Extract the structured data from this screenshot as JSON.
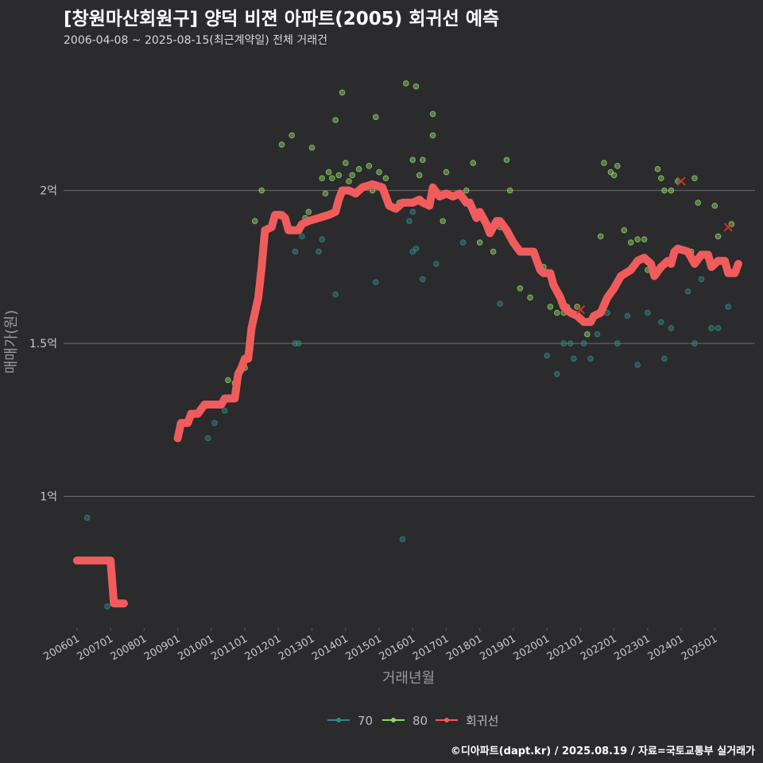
{
  "header": {
    "title": "[창원마산회원구] 양덕 비젼 아파트(2005) 회귀선 예측",
    "subtitle": "2006-04-08 ~ 2025-08-15(최근계약일) 전체 거래건"
  },
  "caption": "©디아파트(dapt.kr) / 2025.08.19 / 자료=국토교통부 실거래가",
  "chart_data": {
    "type": "scatter",
    "xlabel": "거래년월",
    "ylabel": "매매가(원)",
    "x_ticks": [
      "200601",
      "200701",
      "200801",
      "200901",
      "201001",
      "201101",
      "201201",
      "201301",
      "201401",
      "201501",
      "201601",
      "201701",
      "201801",
      "201901",
      "202001",
      "202101",
      "202201",
      "202301",
      "202401",
      "202501"
    ],
    "y_ticks": [
      {
        "value": 1.0,
        "label": "1억"
      },
      {
        "value": 1.5,
        "label": "1.5억"
      },
      {
        "value": 2.0,
        "label": "2억"
      }
    ],
    "xlim": [
      2005.6,
      2026.2
    ],
    "ylim": [
      0.57,
      2.42
    ],
    "grid": true,
    "legend_position": "bottom",
    "colors": {
      "70": "#2e8a86",
      "80": "#8fd468",
      "regression": "#f05c5c",
      "outlier": "#c0392b"
    },
    "series": [
      {
        "name": "70",
        "points": [
          [
            2006.3,
            0.93
          ],
          [
            2006.9,
            0.64
          ],
          [
            2009.9,
            1.19
          ],
          [
            2010.1,
            1.24
          ],
          [
            2010.4,
            1.28
          ],
          [
            2012.5,
            1.5
          ],
          [
            2012.6,
            1.5
          ],
          [
            2012.5,
            1.8
          ],
          [
            2012.7,
            1.85
          ],
          [
            2013.2,
            1.8
          ],
          [
            2013.3,
            1.84
          ],
          [
            2013.7,
            1.66
          ],
          [
            2014.9,
            1.7
          ],
          [
            2015.7,
            0.86
          ],
          [
            2015.9,
            1.9
          ],
          [
            2016.0,
            1.93
          ],
          [
            2016.0,
            1.8
          ],
          [
            2016.1,
            1.81
          ],
          [
            2016.3,
            1.71
          ],
          [
            2016.7,
            1.76
          ],
          [
            2017.5,
            1.83
          ],
          [
            2018.6,
            1.63
          ],
          [
            2020.0,
            1.46
          ],
          [
            2020.3,
            1.4
          ],
          [
            2020.5,
            1.5
          ],
          [
            2020.7,
            1.5
          ],
          [
            2020.8,
            1.45
          ],
          [
            2021.1,
            1.5
          ],
          [
            2021.3,
            1.45
          ],
          [
            2021.5,
            1.53
          ],
          [
            2021.8,
            1.6
          ],
          [
            2022.1,
            1.5
          ],
          [
            2022.4,
            1.59
          ],
          [
            2022.7,
            1.43
          ],
          [
            2023.0,
            1.6
          ],
          [
            2023.4,
            1.57
          ],
          [
            2023.5,
            1.45
          ],
          [
            2023.7,
            1.55
          ],
          [
            2024.2,
            1.67
          ],
          [
            2024.4,
            1.5
          ],
          [
            2024.6,
            1.71
          ],
          [
            2024.9,
            1.55
          ],
          [
            2025.1,
            1.55
          ],
          [
            2025.4,
            1.62
          ]
        ]
      },
      {
        "name": "80",
        "points": [
          [
            2010.5,
            1.38
          ],
          [
            2010.7,
            1.37
          ],
          [
            2011.0,
            1.42
          ],
          [
            2011.3,
            1.9
          ],
          [
            2011.5,
            2.0
          ],
          [
            2012.1,
            2.15
          ],
          [
            2012.4,
            2.18
          ],
          [
            2012.8,
            1.91
          ],
          [
            2012.9,
            1.93
          ],
          [
            2013.0,
            2.14
          ],
          [
            2013.3,
            2.04
          ],
          [
            2013.4,
            1.99
          ],
          [
            2013.5,
            2.06
          ],
          [
            2013.6,
            2.04
          ],
          [
            2013.7,
            2.23
          ],
          [
            2013.8,
            2.05
          ],
          [
            2013.9,
            2.32
          ],
          [
            2014.0,
            2.09
          ],
          [
            2014.1,
            2.03
          ],
          [
            2014.2,
            2.05
          ],
          [
            2014.4,
            2.07
          ],
          [
            2014.7,
            2.08
          ],
          [
            2014.8,
            2.0
          ],
          [
            2014.9,
            2.24
          ],
          [
            2015.0,
            2.06
          ],
          [
            2015.1,
            2.0
          ],
          [
            2015.2,
            2.04
          ],
          [
            2015.6,
            1.96
          ],
          [
            2015.8,
            2.35
          ],
          [
            2016.0,
            2.1
          ],
          [
            2016.1,
            2.34
          ],
          [
            2016.2,
            2.05
          ],
          [
            2016.3,
            2.1
          ],
          [
            2016.6,
            2.25
          ],
          [
            2016.6,
            2.18
          ],
          [
            2016.9,
            1.9
          ],
          [
            2017.0,
            2.06
          ],
          [
            2017.6,
            2.0
          ],
          [
            2017.8,
            2.09
          ],
          [
            2018.0,
            1.83
          ],
          [
            2018.4,
            1.8
          ],
          [
            2018.6,
            1.88
          ],
          [
            2018.8,
            2.1
          ],
          [
            2018.9,
            2.0
          ],
          [
            2019.2,
            1.68
          ],
          [
            2019.5,
            1.65
          ],
          [
            2019.9,
            1.75
          ],
          [
            2020.1,
            1.62
          ],
          [
            2020.3,
            1.6
          ],
          [
            2020.5,
            1.6
          ],
          [
            2020.6,
            1.62
          ],
          [
            2020.9,
            1.62
          ],
          [
            2021.2,
            1.53
          ],
          [
            2021.6,
            1.85
          ],
          [
            2021.7,
            2.09
          ],
          [
            2021.9,
            2.06
          ],
          [
            2022.0,
            2.05
          ],
          [
            2022.1,
            2.08
          ],
          [
            2022.3,
            1.87
          ],
          [
            2022.5,
            1.83
          ],
          [
            2022.7,
            1.84
          ],
          [
            2022.9,
            1.84
          ],
          [
            2023.0,
            1.74
          ],
          [
            2023.3,
            2.07
          ],
          [
            2023.4,
            2.04
          ],
          [
            2023.5,
            2.0
          ],
          [
            2023.7,
            2.0
          ],
          [
            2023.9,
            2.03
          ],
          [
            2024.3,
            1.8
          ],
          [
            2024.4,
            2.04
          ],
          [
            2024.5,
            1.96
          ],
          [
            2025.0,
            1.95
          ],
          [
            2025.1,
            1.85
          ],
          [
            2025.5,
            1.89
          ]
        ]
      }
    ],
    "regression_name": "회귀선",
    "regression": [
      [
        2006.0,
        0.79
      ],
      [
        2006.8,
        0.79
      ],
      [
        2007.0,
        0.79
      ],
      [
        2007.1,
        0.65
      ],
      [
        2007.4,
        0.65
      ],
      null,
      [
        2009.0,
        1.19
      ],
      [
        2009.1,
        1.24
      ],
      [
        2009.3,
        1.24
      ],
      [
        2009.4,
        1.27
      ],
      [
        2009.6,
        1.27
      ],
      [
        2009.8,
        1.3
      ],
      [
        2010.1,
        1.3
      ],
      [
        2010.3,
        1.3
      ],
      [
        2010.4,
        1.32
      ],
      [
        2010.7,
        1.32
      ],
      [
        2010.8,
        1.4
      ],
      [
        2010.9,
        1.42
      ],
      [
        2011.0,
        1.45
      ],
      [
        2011.1,
        1.45
      ],
      [
        2011.2,
        1.55
      ],
      [
        2011.4,
        1.65
      ],
      [
        2011.5,
        1.75
      ],
      [
        2011.6,
        1.87
      ],
      [
        2011.8,
        1.88
      ],
      [
        2011.9,
        1.92
      ],
      [
        2012.1,
        1.92
      ],
      [
        2012.2,
        1.91
      ],
      [
        2012.3,
        1.87
      ],
      [
        2012.6,
        1.87
      ],
      [
        2012.7,
        1.89
      ],
      [
        2012.9,
        1.9
      ],
      [
        2013.2,
        1.91
      ],
      [
        2013.5,
        1.92
      ],
      [
        2013.7,
        1.93
      ],
      [
        2013.8,
        1.97
      ],
      [
        2013.9,
        2.0
      ],
      [
        2014.1,
        2.0
      ],
      [
        2014.3,
        1.99
      ],
      [
        2014.5,
        2.01
      ],
      [
        2014.8,
        2.02
      ],
      [
        2015.1,
        2.01
      ],
      [
        2015.3,
        1.95
      ],
      [
        2015.5,
        1.94
      ],
      [
        2015.7,
        1.96
      ],
      [
        2016.0,
        1.96
      ],
      [
        2016.2,
        1.97
      ],
      [
        2016.3,
        1.96
      ],
      [
        2016.5,
        1.95
      ],
      [
        2016.6,
        2.01
      ],
      [
        2016.8,
        1.98
      ],
      [
        2017.0,
        1.99
      ],
      [
        2017.2,
        1.98
      ],
      [
        2017.4,
        1.99
      ],
      [
        2017.6,
        1.96
      ],
      [
        2017.7,
        1.96
      ],
      [
        2017.9,
        1.91
      ],
      [
        2018.0,
        1.93
      ],
      [
        2018.2,
        1.89
      ],
      [
        2018.3,
        1.86
      ],
      [
        2018.5,
        1.9
      ],
      [
        2018.6,
        1.9
      ],
      [
        2018.8,
        1.87
      ],
      [
        2018.9,
        1.85
      ],
      [
        2019.0,
        1.83
      ],
      [
        2019.2,
        1.8
      ],
      [
        2019.6,
        1.8
      ],
      [
        2019.8,
        1.74
      ],
      [
        2019.9,
        1.73
      ],
      [
        2020.1,
        1.73
      ],
      [
        2020.2,
        1.69
      ],
      [
        2020.4,
        1.65
      ],
      [
        2020.5,
        1.62
      ],
      [
        2020.7,
        1.6
      ],
      [
        2020.9,
        1.59
      ],
      [
        2021.1,
        1.57
      ],
      [
        2021.3,
        1.57
      ],
      [
        2021.4,
        1.59
      ],
      [
        2021.6,
        1.6
      ],
      [
        2021.8,
        1.65
      ],
      [
        2022.0,
        1.68
      ],
      [
        2022.2,
        1.72
      ],
      [
        2022.5,
        1.74
      ],
      [
        2022.7,
        1.77
      ],
      [
        2022.9,
        1.78
      ],
      [
        2023.1,
        1.76
      ],
      [
        2023.2,
        1.72
      ],
      [
        2023.4,
        1.75
      ],
      [
        2023.6,
        1.77
      ],
      [
        2023.7,
        1.76
      ],
      [
        2023.8,
        1.8
      ],
      [
        2023.9,
        1.81
      ],
      [
        2024.2,
        1.8
      ],
      [
        2024.4,
        1.76
      ],
      [
        2024.6,
        1.79
      ],
      [
        2024.8,
        1.79
      ],
      [
        2024.9,
        1.75
      ],
      [
        2025.1,
        1.77
      ],
      [
        2025.3,
        1.77
      ],
      [
        2025.4,
        1.73
      ],
      [
        2025.6,
        1.73
      ],
      [
        2025.7,
        1.76
      ]
    ],
    "outliers": [
      [
        2021.0,
        1.61
      ],
      [
        2024.0,
        2.03
      ],
      [
        2025.4,
        1.88
      ]
    ]
  }
}
